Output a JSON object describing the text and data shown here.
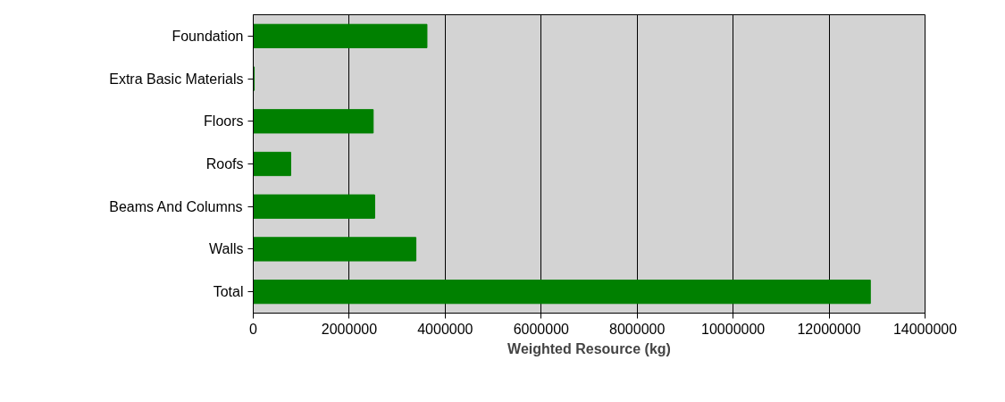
{
  "chart_data": {
    "type": "bar",
    "orientation": "horizontal",
    "xlabel": "Weighted Resource (kg)",
    "categories": [
      "Foundation",
      "Extra Basic Materials",
      "Floors",
      "Roofs",
      "Beams And Columns",
      "Walls",
      "Total"
    ],
    "values": [
      3620000,
      20000,
      2500000,
      780000,
      2530000,
      3390000,
      12860000
    ],
    "color": "#008000",
    "xlim": [
      0,
      14000000
    ],
    "xticks": [
      0,
      2000000,
      4000000,
      6000000,
      8000000,
      10000000,
      12000000,
      14000000
    ],
    "grid": "x"
  }
}
